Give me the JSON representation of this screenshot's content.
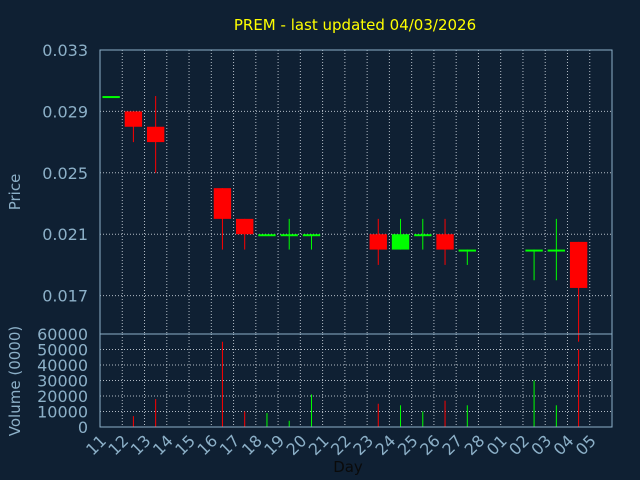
{
  "chart_data": {
    "type": "candlestick",
    "title": "PREM - last updated 04/03/2026",
    "xlabel": "Day",
    "price_axis": {
      "label": "Price",
      "ylim": [
        0.0145,
        0.033
      ],
      "ticks": [
        "0.033",
        "0.029",
        "0.025",
        "0.021",
        "0.017"
      ],
      "tick_values": [
        0.033,
        0.029,
        0.025,
        0.021,
        0.017
      ]
    },
    "volume_axis": {
      "label": "Volume (0000)",
      "ylim": [
        0,
        60000
      ],
      "ticks": [
        "60000",
        "50000",
        "40000",
        "30000",
        "20000",
        "10000",
        "0"
      ],
      "tick_values": [
        60000,
        50000,
        40000,
        30000,
        20000,
        10000,
        0
      ]
    },
    "x_ticks": [
      "11",
      "12",
      "13",
      "14",
      "15",
      "16",
      "17",
      "18",
      "19",
      "20",
      "21",
      "22",
      "23",
      "24",
      "25",
      "26",
      "27",
      "28",
      "01",
      "02",
      "03",
      "04",
      "05"
    ],
    "grid": true,
    "colors": {
      "up": "#00ff00",
      "down": "#ff0000",
      "background": "#0f2033",
      "frame": "#8cb0c8",
      "grid": "#d0d8e0",
      "title": "#ffff00",
      "label": "#8cb0c8"
    },
    "candles": [
      {
        "day": "11",
        "open": 0.03,
        "high": 0.03,
        "low": 0.03,
        "close": 0.03,
        "volume": 0,
        "dir": "up"
      },
      {
        "day": "12",
        "open": 0.029,
        "high": 0.029,
        "low": 0.027,
        "close": 0.028,
        "volume": 7000,
        "dir": "down"
      },
      {
        "day": "13",
        "open": 0.028,
        "high": 0.03,
        "low": 0.025,
        "close": 0.027,
        "volume": 18000,
        "dir": "down"
      },
      {
        "day": "16",
        "open": 0.024,
        "high": 0.024,
        "low": 0.02,
        "close": 0.022,
        "volume": 55000,
        "dir": "down"
      },
      {
        "day": "17",
        "open": 0.022,
        "high": 0.022,
        "low": 0.02,
        "close": 0.021,
        "volume": 10000,
        "dir": "down"
      },
      {
        "day": "18",
        "open": 0.021,
        "high": 0.021,
        "low": 0.021,
        "close": 0.021,
        "volume": 9000,
        "dir": "up"
      },
      {
        "day": "19",
        "open": 0.021,
        "high": 0.022,
        "low": 0.02,
        "close": 0.021,
        "volume": 4000,
        "dir": "up"
      },
      {
        "day": "20",
        "open": 0.021,
        "high": 0.021,
        "low": 0.02,
        "close": 0.021,
        "volume": 21000,
        "dir": "up"
      },
      {
        "day": "23",
        "open": 0.021,
        "high": 0.022,
        "low": 0.019,
        "close": 0.02,
        "volume": 15000,
        "dir": "down"
      },
      {
        "day": "24",
        "open": 0.02,
        "high": 0.022,
        "low": 0.02,
        "close": 0.021,
        "volume": 14000,
        "dir": "up"
      },
      {
        "day": "25",
        "open": 0.021,
        "high": 0.022,
        "low": 0.02,
        "close": 0.021,
        "volume": 10000,
        "dir": "up"
      },
      {
        "day": "26",
        "open": 0.021,
        "high": 0.022,
        "low": 0.019,
        "close": 0.02,
        "volume": 17000,
        "dir": "down"
      },
      {
        "day": "27",
        "open": 0.02,
        "high": 0.02,
        "low": 0.019,
        "close": 0.02,
        "volume": 14000,
        "dir": "up"
      },
      {
        "day": "02",
        "open": 0.02,
        "high": 0.02,
        "low": 0.018,
        "close": 0.02,
        "volume": 30000,
        "dir": "up"
      },
      {
        "day": "03",
        "open": 0.02,
        "high": 0.022,
        "low": 0.018,
        "close": 0.02,
        "volume": 14000,
        "dir": "up"
      },
      {
        "day": "04",
        "open": 0.0205,
        "high": 0.0205,
        "low": 0.014,
        "close": 0.0175,
        "volume": 50000,
        "dir": "down"
      }
    ]
  }
}
